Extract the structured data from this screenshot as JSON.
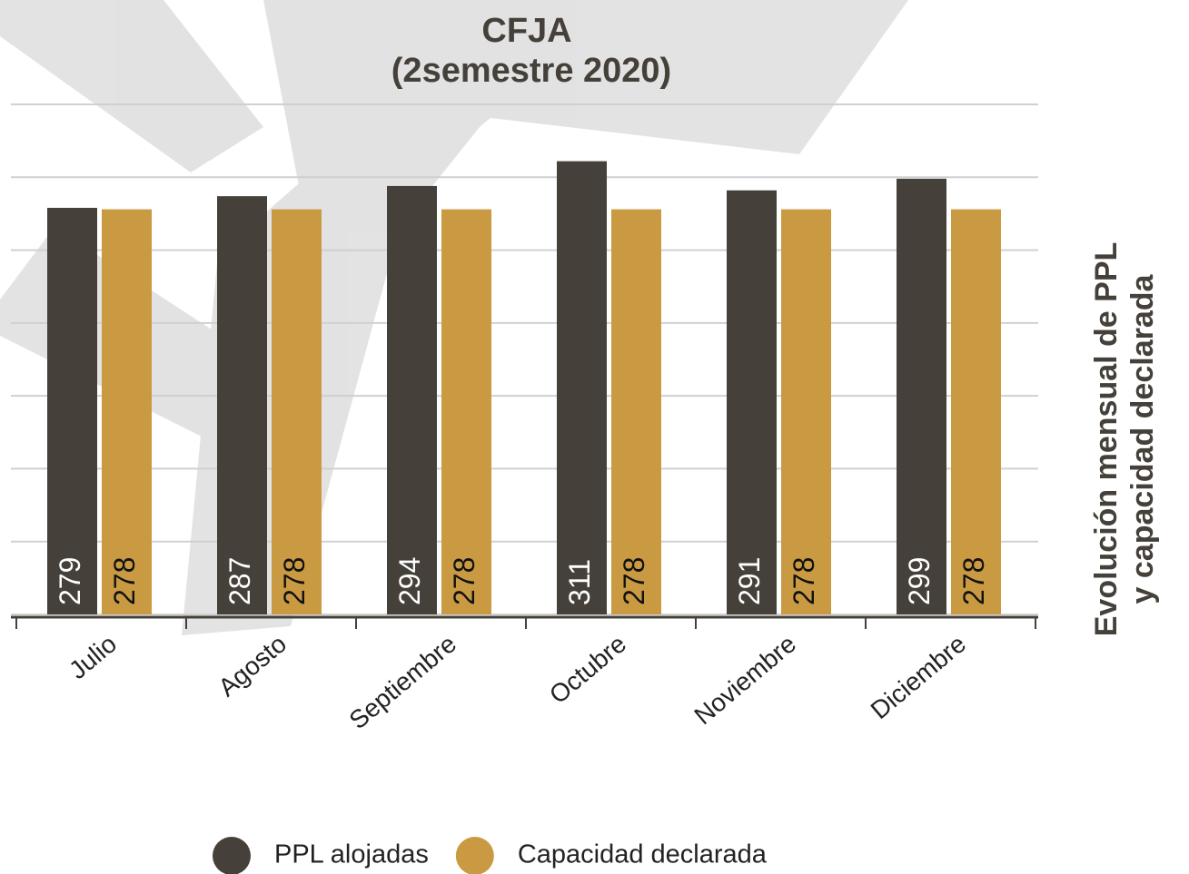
{
  "chart_data": {
    "type": "bar",
    "title": [
      "CFJA",
      "(2semestre 2020)"
    ],
    "side_title": [
      "Evolución mensual de PPL",
      "y capacidad declarada"
    ],
    "categories": [
      "Julio",
      "Agosto",
      "Septiembre",
      "Octubre",
      "Noviembre",
      "Diciembre"
    ],
    "series": [
      {
        "name": "PPL alojadas",
        "color": "#45413a",
        "label_color": "#ffffff",
        "values": [
          279,
          287,
          294,
          311,
          291,
          299
        ]
      },
      {
        "name": "Capacidad declarada",
        "color": "#c99a42",
        "label_color": "#111111",
        "values": [
          278,
          278,
          278,
          278,
          278,
          278
        ]
      }
    ],
    "ylim": [
      0,
      350
    ],
    "yticks": [
      0,
      50,
      100,
      150,
      200,
      250,
      300,
      350
    ],
    "grid": true
  }
}
